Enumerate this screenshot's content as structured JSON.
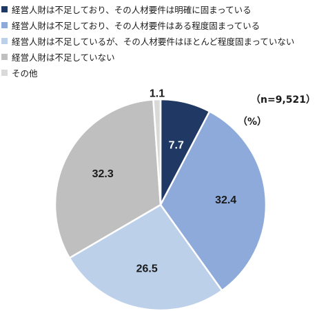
{
  "chart_data": {
    "type": "pie",
    "sample_size": "（n=9,521）",
    "unit": "（%）",
    "legend_position": "top-left",
    "slices": [
      {
        "label": "経営人財は不足しており、その人材要件は明確に固まっている",
        "value": 7.7,
        "value_label": "7.7",
        "color": "#1f3864",
        "text_color": "#ffffff"
      },
      {
        "label": "経営人財は不足しており、その人材要件はある程度固まっている",
        "value": 32.4,
        "value_label": "32.4",
        "color": "#8eaadb",
        "text_color": "#1a1a1a"
      },
      {
        "label": "経営人財は不足しているが、その人材要件はほとんど程度固まっていない",
        "value": 26.5,
        "value_label": "26.5",
        "color": "#bdd0ea",
        "text_color": "#1a1a1a"
      },
      {
        "label": "経営人財は不足していない",
        "value": 32.3,
        "value_label": "32.3",
        "color": "#bfbfbf",
        "text_color": "#1a1a1a"
      },
      {
        "label": "その他",
        "value": 1.1,
        "value_label": "1.1",
        "color": "#d9d9d9",
        "text_color": "#1a1a1a"
      }
    ]
  }
}
